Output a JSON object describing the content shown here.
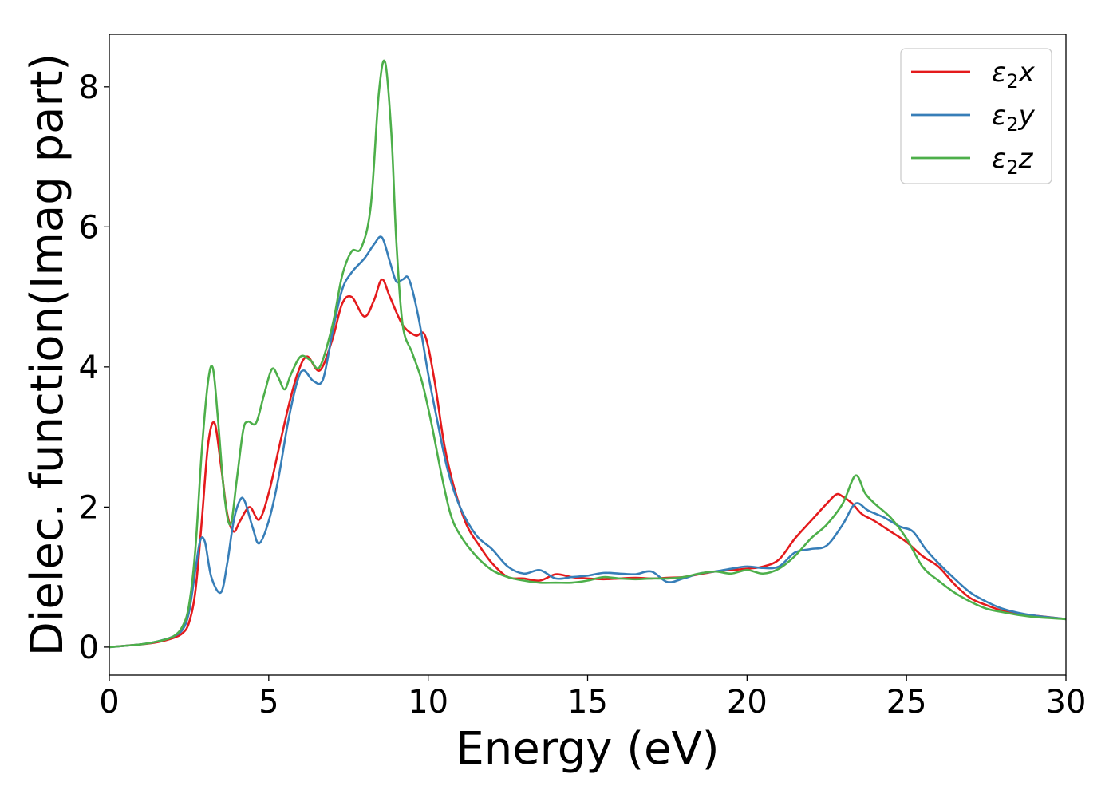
{
  "chart_data": {
    "type": "line",
    "title": "",
    "xlabel": "Energy (eV)",
    "ylabel": "Dielec. function(Imag part)",
    "xlim": [
      0,
      30
    ],
    "ylim": [
      -0.4,
      8.75
    ],
    "xticks": [
      0,
      5,
      10,
      15,
      20,
      25,
      30
    ],
    "xtick_labels": [
      "0",
      "5",
      "10",
      "15",
      "20",
      "25",
      "30"
    ],
    "yticks": [
      0,
      2,
      4,
      6,
      8
    ],
    "ytick_labels": [
      "0",
      "2",
      "4",
      "6",
      "8"
    ],
    "grid": false,
    "legend_position": "top-right",
    "series": [
      {
        "name": "ε₂x",
        "legend_base": "ε",
        "legend_sub": "2",
        "legend_var": "x",
        "color": "#e41a1c",
        "x": [
          0,
          1,
          1.5,
          2,
          2.3,
          2.5,
          2.7,
          2.9,
          3.1,
          3.3,
          3.5,
          3.7,
          3.9,
          4.1,
          4.4,
          4.7,
          5.0,
          5.3,
          5.6,
          5.9,
          6.2,
          6.6,
          7.0,
          7.3,
          7.6,
          8.0,
          8.3,
          8.55,
          8.8,
          9.2,
          9.6,
          9.9,
          10.2,
          10.5,
          10.8,
          11.2,
          11.6,
          12.0,
          12.5,
          13.0,
          13.5,
          14.0,
          14.5,
          15.0,
          15.5,
          16.0,
          16.5,
          17.0,
          17.5,
          18.0,
          18.5,
          19.0,
          19.5,
          20.0,
          20.5,
          21.0,
          21.5,
          22.0,
          22.5,
          22.8,
          23.0,
          23.3,
          23.6,
          24.0,
          24.5,
          25.0,
          25.5,
          26.0,
          26.5,
          27.0,
          27.5,
          28.0,
          28.5,
          29.0,
          30.0
        ],
        "y": [
          0,
          0.04,
          0.07,
          0.13,
          0.2,
          0.35,
          0.8,
          1.8,
          2.9,
          3.2,
          2.6,
          1.9,
          1.65,
          1.8,
          2.0,
          1.82,
          2.2,
          2.8,
          3.4,
          3.9,
          4.15,
          3.95,
          4.4,
          4.9,
          5.0,
          4.72,
          4.95,
          5.25,
          5.0,
          4.6,
          4.45,
          4.45,
          3.8,
          2.9,
          2.3,
          1.75,
          1.45,
          1.2,
          1.0,
          0.98,
          0.95,
          1.04,
          1.0,
          0.98,
          0.97,
          0.98,
          0.99,
          0.98,
          0.99,
          1.0,
          1.04,
          1.08,
          1.1,
          1.12,
          1.15,
          1.25,
          1.55,
          1.8,
          2.05,
          2.18,
          2.15,
          2.05,
          1.9,
          1.8,
          1.65,
          1.5,
          1.3,
          1.15,
          0.9,
          0.7,
          0.6,
          0.52,
          0.47,
          0.45,
          0.4
        ]
      },
      {
        "name": "ε₂y",
        "legend_base": "ε",
        "legend_sub": "2",
        "legend_var": "y",
        "color": "#377eb8",
        "x": [
          0,
          1,
          1.5,
          2,
          2.3,
          2.5,
          2.7,
          2.85,
          3.0,
          3.2,
          3.5,
          3.7,
          3.9,
          4.1,
          4.25,
          4.5,
          4.7,
          5.0,
          5.3,
          5.6,
          5.9,
          6.1,
          6.4,
          6.7,
          7.0,
          7.3,
          7.6,
          8.0,
          8.3,
          8.55,
          8.8,
          9.0,
          9.2,
          9.4,
          9.7,
          10.0,
          10.3,
          10.6,
          11.0,
          11.5,
          12.0,
          12.5,
          13.0,
          13.5,
          14.0,
          14.5,
          15.0,
          15.5,
          16.0,
          16.5,
          17.0,
          17.5,
          18.0,
          18.5,
          19.0,
          19.5,
          20.0,
          20.5,
          21.0,
          21.5,
          22.0,
          22.5,
          23.0,
          23.4,
          23.8,
          24.3,
          24.8,
          25.2,
          25.6,
          26.0,
          26.5,
          27.0,
          27.5,
          28.0,
          28.5,
          29.0,
          30.0
        ],
        "y": [
          0,
          0.04,
          0.08,
          0.15,
          0.25,
          0.5,
          1.1,
          1.52,
          1.5,
          1.0,
          0.78,
          1.2,
          1.8,
          2.1,
          2.08,
          1.7,
          1.48,
          1.8,
          2.4,
          3.2,
          3.8,
          3.95,
          3.8,
          3.82,
          4.5,
          5.1,
          5.35,
          5.55,
          5.75,
          5.85,
          5.5,
          5.22,
          5.25,
          5.25,
          4.7,
          3.9,
          3.2,
          2.55,
          2.0,
          1.6,
          1.4,
          1.15,
          1.05,
          1.1,
          0.98,
          1.0,
          1.02,
          1.06,
          1.05,
          1.04,
          1.08,
          0.93,
          0.98,
          1.05,
          1.08,
          1.12,
          1.15,
          1.13,
          1.15,
          1.35,
          1.4,
          1.45,
          1.75,
          2.05,
          1.95,
          1.85,
          1.72,
          1.65,
          1.4,
          1.2,
          0.98,
          0.78,
          0.65,
          0.55,
          0.49,
          0.45,
          0.4
        ]
      },
      {
        "name": "ε₂z",
        "legend_base": "ε",
        "legend_sub": "2",
        "legend_var": "z",
        "color": "#4daf4a",
        "x": [
          0,
          1,
          1.5,
          2,
          2.3,
          2.5,
          2.7,
          2.9,
          3.1,
          3.25,
          3.4,
          3.6,
          3.8,
          4.0,
          4.2,
          4.35,
          4.6,
          4.85,
          5.1,
          5.3,
          5.5,
          5.7,
          6.0,
          6.3,
          6.6,
          7.0,
          7.3,
          7.6,
          7.9,
          8.2,
          8.45,
          8.65,
          8.85,
          9.0,
          9.2,
          9.5,
          9.8,
          10.1,
          10.4,
          10.7,
          11.0,
          11.5,
          12.0,
          12.5,
          13.0,
          13.5,
          14.0,
          14.5,
          15.0,
          15.5,
          16.0,
          16.5,
          17.0,
          17.5,
          18.0,
          18.5,
          19.0,
          19.5,
          20.0,
          20.5,
          21.0,
          21.5,
          22.0,
          22.5,
          23.0,
          23.4,
          23.7,
          24.0,
          24.5,
          25.0,
          25.5,
          26.0,
          26.5,
          27.0,
          27.5,
          28.0,
          28.5,
          29.0,
          30.0
        ],
        "y": [
          0,
          0.04,
          0.08,
          0.15,
          0.3,
          0.6,
          1.4,
          2.8,
          3.8,
          3.98,
          3.3,
          2.2,
          1.75,
          2.4,
          3.1,
          3.22,
          3.2,
          3.6,
          3.97,
          3.85,
          3.68,
          3.9,
          4.15,
          4.1,
          4.0,
          4.6,
          5.3,
          5.65,
          5.7,
          6.3,
          7.9,
          8.35,
          7.3,
          5.8,
          4.6,
          4.2,
          3.8,
          3.2,
          2.5,
          1.9,
          1.6,
          1.3,
          1.1,
          1.0,
          0.95,
          0.92,
          0.92,
          0.92,
          0.95,
          1.0,
          0.98,
          0.97,
          0.98,
          0.98,
          1.0,
          1.05,
          1.08,
          1.05,
          1.1,
          1.05,
          1.12,
          1.3,
          1.55,
          1.75,
          2.05,
          2.45,
          2.2,
          2.05,
          1.85,
          1.55,
          1.15,
          0.95,
          0.78,
          0.65,
          0.55,
          0.5,
          0.46,
          0.43,
          0.4
        ]
      }
    ]
  }
}
